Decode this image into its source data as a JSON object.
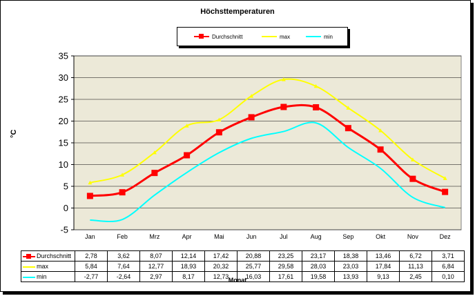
{
  "chart_data": {
    "type": "line",
    "title": "Höchsttemperaturen",
    "xlabel": "Monat",
    "ylabel": "°C",
    "ylim": [
      -5,
      35
    ],
    "yticks": [
      "35",
      "30",
      "25",
      "20",
      "15",
      "10",
      "5",
      "0",
      "-5"
    ],
    "categories": [
      "Jan",
      "Feb",
      "Mrz",
      "Apr",
      "Mai",
      "Jun",
      "Jul",
      "Aug",
      "Sep",
      "Okt",
      "Nov",
      "Dez"
    ],
    "legend_position": "top",
    "grid": true,
    "plot_background": "#ece9d8",
    "series": [
      {
        "name": "Durchschnitt",
        "color": "#ff0000",
        "marker": "square",
        "values": [
          2.78,
          3.62,
          8.07,
          12.14,
          17.42,
          20.88,
          23.25,
          23.17,
          18.38,
          13.46,
          6.72,
          3.71
        ],
        "labels": [
          "2,78",
          "3,62",
          "8,07",
          "12,14",
          "17,42",
          "20,88",
          "23,25",
          "23,17",
          "18,38",
          "13,46",
          "6,72",
          "3,71"
        ]
      },
      {
        "name": "max",
        "color": "#ffff00",
        "marker": "triangle",
        "values": [
          5.84,
          7.64,
          12.77,
          18.93,
          20.32,
          25.77,
          29.58,
          28.03,
          23.03,
          17.84,
          11.13,
          6.84
        ],
        "labels": [
          "5,84",
          "7,64",
          "12,77",
          "18,93",
          "20,32",
          "25,77",
          "29,58",
          "28,03",
          "23,03",
          "17,84",
          "11,13",
          "6,84"
        ]
      },
      {
        "name": "min",
        "color": "#00ffff",
        "marker": "none",
        "values": [
          -2.77,
          -2.64,
          2.97,
          8.17,
          12.73,
          16.03,
          17.61,
          19.58,
          13.93,
          9.13,
          2.45,
          0.1
        ],
        "labels": [
          "-2,77",
          "-2,64",
          "2,97",
          "8,17",
          "12,73",
          "16,03",
          "17,61",
          "19,58",
          "13,93",
          "9,13",
          "2,45",
          "0,10"
        ]
      }
    ]
  }
}
